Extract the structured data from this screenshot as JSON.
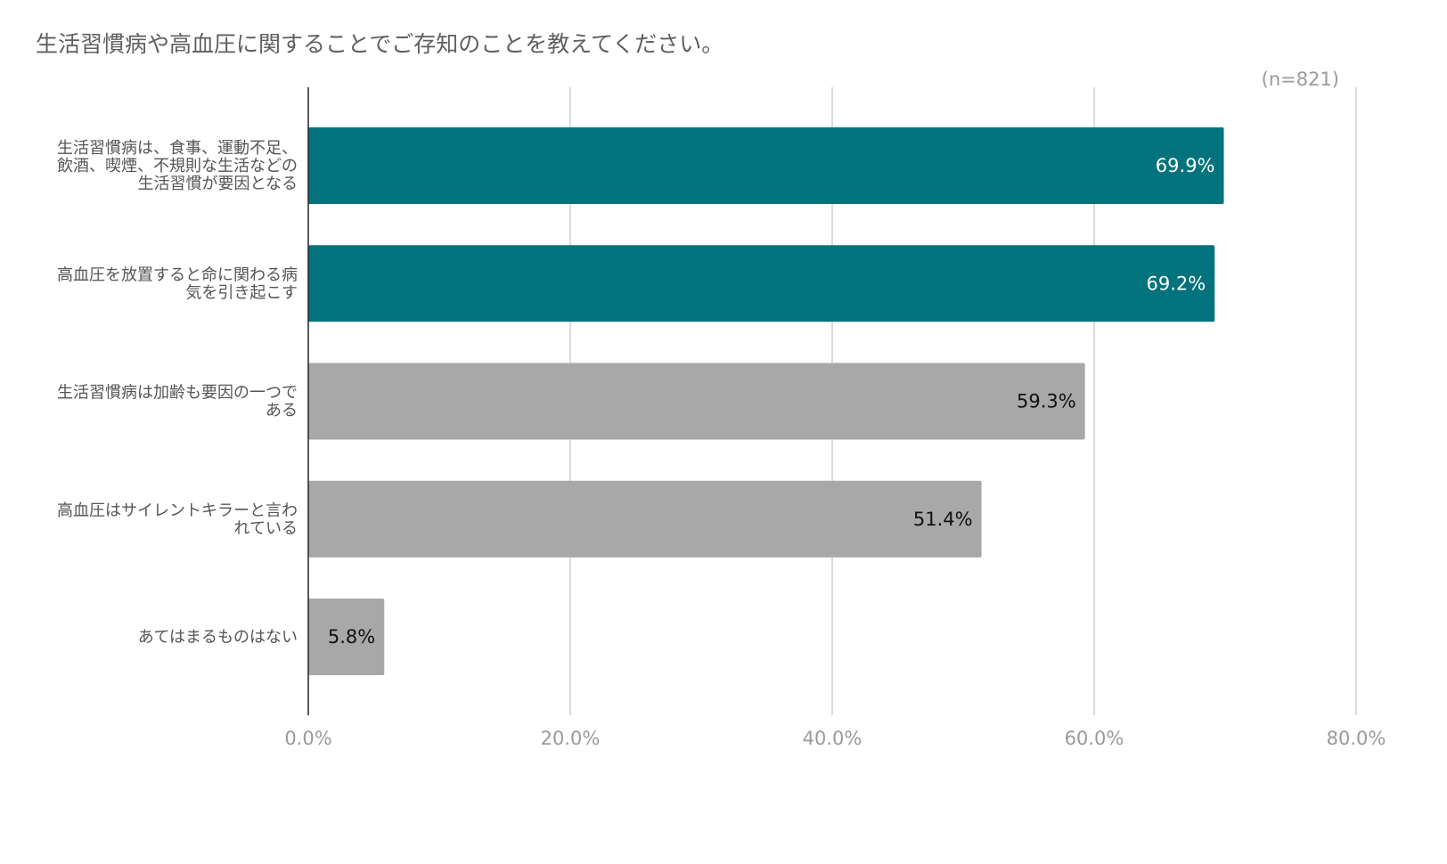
{
  "chart_data": {
    "type": "bar",
    "orientation": "horizontal",
    "title": "生活習慣病や高血圧に関することでご存知のことを教えてください。",
    "note": "(n=821)",
    "categories": [
      "生活習慣病は、食事、運動不足、飲酒、喫煙、不規則な生活などの生活習慣が要因となる",
      "高血圧を放置すると命に関わる病気を引き起こす",
      "生活習慣病は加齢も要因の一つである",
      "高血圧はサイレントキラーと言われている",
      "あてはまるものはない"
    ],
    "category_label_lines": [
      [
        "生活習慣病は、食事、運動不足、",
        "飲酒、喫煙、不規則な生活などの",
        "生活習慣が要因となる"
      ],
      [
        "高血圧を放置すると命に関わる病",
        "気を引き起こす"
      ],
      [
        "生活習慣病は加齢も要因の一つで",
        "ある"
      ],
      [
        "高血圧はサイレントキラーと言わ",
        "れている"
      ],
      [
        "あてはまるものはない"
      ]
    ],
    "values": [
      69.9,
      69.2,
      59.3,
      51.4,
      5.8
    ],
    "value_labels": [
      "69.9%",
      "69.2%",
      "59.3%",
      "51.4%",
      "5.8%"
    ],
    "bar_colors": [
      "#02737c",
      "#02737c",
      "#a8a8a8",
      "#a8a8a8",
      "#a8a8a8"
    ],
    "value_label_colors": [
      "#ffffff",
      "#ffffff",
      "#111111",
      "#111111",
      "#111111"
    ],
    "xlim": [
      0,
      80
    ],
    "x_ticks": [
      0,
      20,
      40,
      60,
      80
    ],
    "x_tick_labels": [
      "0.0%",
      "20.0%",
      "40.0%",
      "60.0%",
      "80.0%"
    ],
    "grid": true,
    "legend": "none"
  }
}
